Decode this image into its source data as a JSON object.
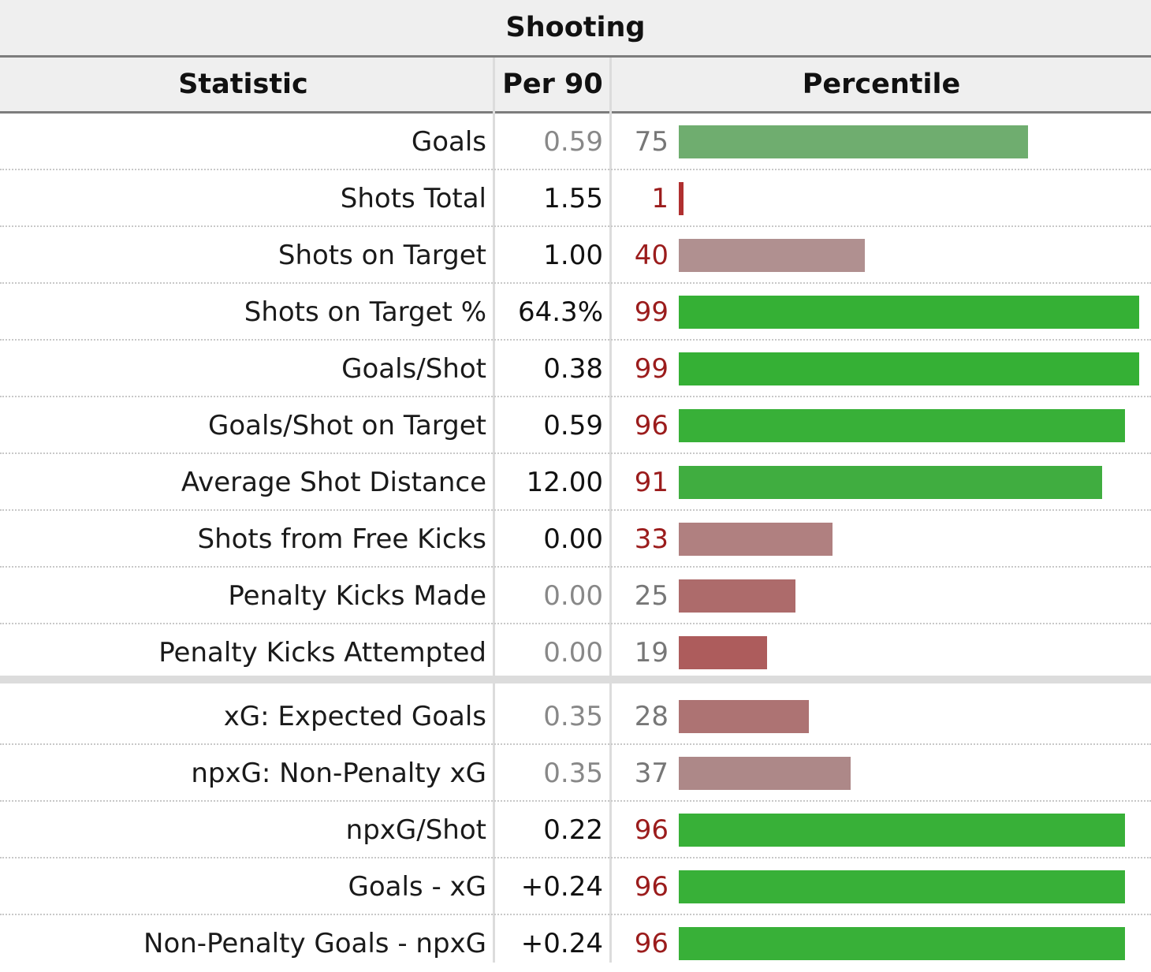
{
  "table": {
    "title": "Shooting",
    "headers": {
      "statistic": "Statistic",
      "per90": "Per 90",
      "percentile": "Percentile"
    },
    "rows": [
      {
        "stat": "Goals",
        "per90": "0.59",
        "percentile": 75,
        "per90_color": "#888888",
        "num_color": "#777777",
        "bar_color": "#6fad6f"
      },
      {
        "stat": "Shots Total",
        "per90": "1.55",
        "percentile": 1,
        "per90_color": "#111111",
        "num_color": "#9b1c1c",
        "bar_color": "#b03030"
      },
      {
        "stat": "Shots on Target",
        "per90": "1.00",
        "percentile": 40,
        "per90_color": "#111111",
        "num_color": "#9b1c1c",
        "bar_color": "#b09090"
      },
      {
        "stat": "Shots on Target %",
        "per90": "64.3%",
        "percentile": 99,
        "per90_color": "#111111",
        "num_color": "#9b1c1c",
        "bar_color": "#35b035"
      },
      {
        "stat": "Goals/Shot",
        "per90": "0.38",
        "percentile": 99,
        "per90_color": "#111111",
        "num_color": "#9b1c1c",
        "bar_color": "#35b035"
      },
      {
        "stat": "Goals/Shot on Target",
        "per90": "0.59",
        "percentile": 96,
        "per90_color": "#111111",
        "num_color": "#9b1c1c",
        "bar_color": "#38b038"
      },
      {
        "stat": "Average Shot Distance",
        "per90": "12.00",
        "percentile": 91,
        "per90_color": "#111111",
        "num_color": "#9b1c1c",
        "bar_color": "#40ad40"
      },
      {
        "stat": "Shots from Free Kicks",
        "per90": "0.00",
        "percentile": 33,
        "per90_color": "#111111",
        "num_color": "#9b1c1c",
        "bar_color": "#b08080"
      },
      {
        "stat": "Penalty Kicks Made",
        "per90": "0.00",
        "percentile": 25,
        "per90_color": "#888888",
        "num_color": "#777777",
        "bar_color": "#ad6b6b"
      },
      {
        "stat": "Penalty Kicks Attempted",
        "per90": "0.00",
        "percentile": 19,
        "per90_color": "#888888",
        "num_color": "#777777",
        "bar_color": "#ad5c5c"
      },
      {
        "stat": "xG: Expected Goals",
        "per90": "0.35",
        "percentile": 28,
        "per90_color": "#888888",
        "num_color": "#777777",
        "bar_color": "#ad7373"
      },
      {
        "stat": "npxG: Non-Penalty xG",
        "per90": "0.35",
        "percentile": 37,
        "per90_color": "#888888",
        "num_color": "#777777",
        "bar_color": "#ad8888"
      },
      {
        "stat": "npxG/Shot",
        "per90": "0.22",
        "percentile": 96,
        "per90_color": "#111111",
        "num_color": "#9b1c1c",
        "bar_color": "#38b038"
      },
      {
        "stat": "Goals - xG",
        "per90": "+0.24",
        "percentile": 96,
        "per90_color": "#111111",
        "num_color": "#9b1c1c",
        "bar_color": "#38b038"
      },
      {
        "stat": "Non-Penalty Goals - npxG",
        "per90": "+0.24",
        "percentile": 96,
        "per90_color": "#111111",
        "num_color": "#9b1c1c",
        "bar_color": "#38b038"
      }
    ]
  }
}
